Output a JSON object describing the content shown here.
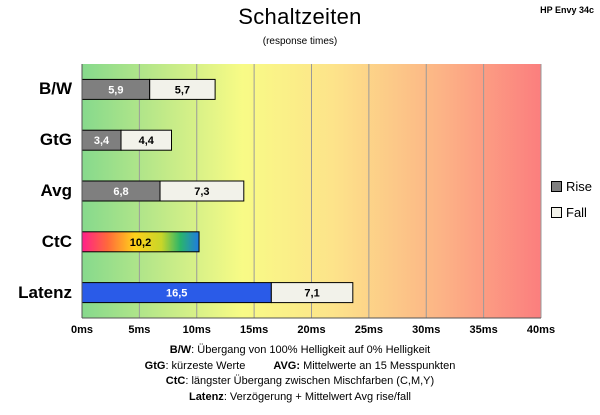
{
  "header": {
    "title": "Schaltzeiten",
    "subtitle": "(response times)",
    "model": "HP Envy 34c"
  },
  "legend": [
    {
      "label": "Rise",
      "color": "#7f7f7f"
    },
    {
      "label": "Fall",
      "color": "#f2f2ea"
    }
  ],
  "notes": {
    "bw_key": "B/W",
    "bw_text": ":  Übergang von 100% Helligkeit auf 0% Helligkeit",
    "gtg_key": "GtG",
    "gtg_text": ": kürzeste  Werte",
    "avg_key": "AVG:",
    "avg_text": " Mittelwerte  an 15 Messpunkten",
    "ctc_key": "CtC",
    "ctc_text": ": längster Übergang  zwischen Mischfarben  (C,M,Y)",
    "lat_key": "Latenz",
    "lat_text": ": Verzögerung  + Mittelwert  Avg rise/fall"
  },
  "chart_data": {
    "type": "bar",
    "orientation": "horizontal",
    "stacked": true,
    "categories": [
      "B/W",
      "GtG",
      "Avg",
      "CtC",
      "Latenz"
    ],
    "series": [
      {
        "name": "Rise",
        "values": [
          5.9,
          3.4,
          6.8,
          null,
          null
        ]
      },
      {
        "name": "Fall",
        "values": [
          5.7,
          4.4,
          7.3,
          null,
          7.1
        ]
      }
    ],
    "special_bars": [
      {
        "category": "CtC",
        "value": 10.2,
        "label": "10,2",
        "style": "color-gradient"
      },
      {
        "category": "Latenz",
        "value": 16.5,
        "label": "16,5",
        "color": "#2a5be8"
      }
    ],
    "xlim": [
      0,
      40
    ],
    "xticks": [
      "0ms",
      "5ms",
      "10ms",
      "15ms",
      "20ms",
      "25ms",
      "30ms",
      "35ms",
      "40ms"
    ],
    "grid": true,
    "legend_position": "right",
    "background": "gradient green-yellow-red"
  }
}
